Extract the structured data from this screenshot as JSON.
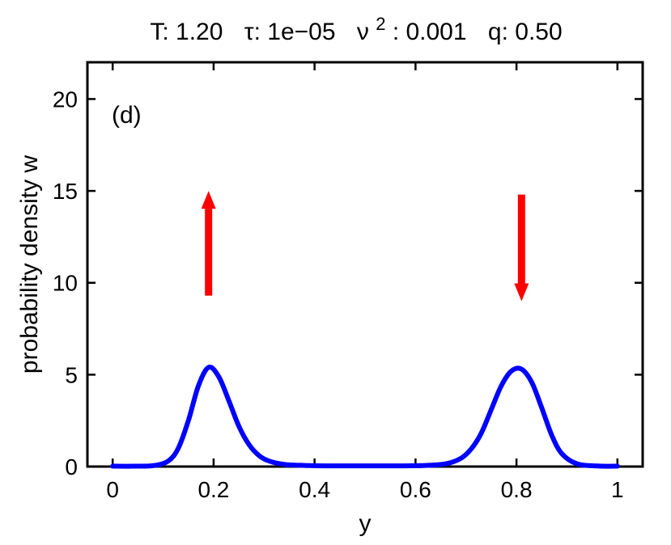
{
  "chart_data": {
    "type": "line",
    "title_parts": {
      "T": "T: 1.20",
      "tau": "τ: 1e−05",
      "nu_base": "ν",
      "nu_sup": "2",
      "nu_rest": ": 0.001",
      "q": "q: 0.50"
    },
    "panel_label": "(d)",
    "xlabel": "y",
    "ylabel": "probability density w",
    "xlim": [
      -0.05,
      1.05
    ],
    "ylim": [
      0,
      22
    ],
    "xticks": [
      0,
      0.2,
      0.4,
      0.6,
      0.8,
      1
    ],
    "xtick_labels": [
      "0",
      "0.2",
      "0.4",
      "0.6",
      "0.8",
      "1"
    ],
    "yticks": [
      0,
      5,
      10,
      15,
      20
    ],
    "ytick_labels": [
      "0",
      "5",
      "10",
      "15",
      "20"
    ],
    "grid": false,
    "series": [
      {
        "color": "#0000ff",
        "x": [
          0,
          0.04,
          0.08,
          0.11,
          0.13,
          0.15,
          0.17,
          0.19,
          0.21,
          0.23,
          0.25,
          0.27,
          0.29,
          0.31,
          0.34,
          0.38,
          0.42,
          0.5,
          0.58,
          0.62,
          0.66,
          0.69,
          0.71,
          0.73,
          0.75,
          0.77,
          0.79,
          0.81,
          0.83,
          0.85,
          0.87,
          0.89,
          0.92,
          0.96,
          1.0
        ],
        "y": [
          0.02,
          0.02,
          0.05,
          0.3,
          1.0,
          2.5,
          4.4,
          5.4,
          4.9,
          3.6,
          2.2,
          1.2,
          0.6,
          0.3,
          0.12,
          0.06,
          0.04,
          0.04,
          0.04,
          0.06,
          0.15,
          0.45,
          0.95,
          1.8,
          3.1,
          4.4,
          5.2,
          5.3,
          4.6,
          3.2,
          1.7,
          0.7,
          0.15,
          0.03,
          0.02
        ]
      }
    ],
    "arrows": [
      {
        "x": 0.19,
        "from_y": 9.3,
        "to_y": 15.0,
        "direction": "up",
        "color": "#ff0000"
      },
      {
        "x": 0.81,
        "from_y": 14.8,
        "to_y": 9.0,
        "direction": "down",
        "color": "#ff0000"
      }
    ]
  }
}
